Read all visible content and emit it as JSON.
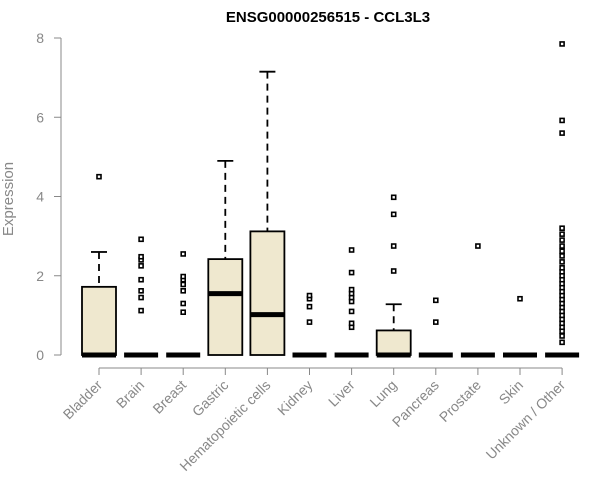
{
  "chart_data": {
    "type": "boxplot",
    "title": "ENSG00000256515 - CCL3L3",
    "ylabel": "Expression",
    "xlabel": "",
    "ylim": [
      0,
      8
    ],
    "yticks": [
      0,
      2,
      4,
      6,
      8
    ],
    "box_fill": "#efe8cf",
    "categories": [
      "Bladder",
      "Brain",
      "Breast",
      "Gastric",
      "Hematopoietic cells",
      "Kidney",
      "Liver",
      "Lung",
      "Pancreas",
      "Prostate",
      "Skin",
      "Unknown / Other"
    ],
    "boxes": [
      {
        "q1": 0,
        "median": 0,
        "q3": 1.72,
        "whisker_low": 0,
        "whisker_high": 2.6,
        "outliers": [
          4.5
        ]
      },
      {
        "q1": 0,
        "median": 0,
        "q3": 0,
        "whisker_low": 0,
        "whisker_high": 0,
        "outliers": [
          1.12,
          1.45,
          1.62,
          1.9,
          2.25,
          2.4,
          2.48,
          2.92
        ]
      },
      {
        "q1": 0,
        "median": 0,
        "q3": 0,
        "whisker_low": 0,
        "whisker_high": 0,
        "outliers": [
          1.08,
          1.3,
          1.62,
          1.78,
          1.9,
          1.98,
          2.55
        ]
      },
      {
        "q1": 0,
        "median": 1.55,
        "q3": 2.42,
        "whisker_low": 0,
        "whisker_high": 4.9,
        "outliers": []
      },
      {
        "q1": 0,
        "median": 1.02,
        "q3": 3.12,
        "whisker_low": 0,
        "whisker_high": 7.15,
        "outliers": []
      },
      {
        "q1": 0,
        "median": 0,
        "q3": 0,
        "whisker_low": 0,
        "whisker_high": 0,
        "outliers": [
          0.83,
          1.22,
          1.42,
          1.5
        ]
      },
      {
        "q1": 0,
        "median": 0,
        "q3": 0,
        "whisker_low": 0,
        "whisker_high": 0,
        "outliers": [
          0.7,
          0.8,
          1.1,
          1.35,
          1.45,
          1.55,
          1.65,
          2.08,
          2.65
        ]
      },
      {
        "q1": 0,
        "median": 0,
        "q3": 0.62,
        "whisker_low": 0,
        "whisker_high": 1.28,
        "outliers": [
          2.12,
          2.75,
          3.55,
          3.98
        ]
      },
      {
        "q1": 0,
        "median": 0,
        "q3": 0,
        "whisker_low": 0,
        "whisker_high": 0,
        "outliers": [
          0.83,
          1.38
        ]
      },
      {
        "q1": 0,
        "median": 0,
        "q3": 0,
        "whisker_low": 0,
        "whisker_high": 0,
        "outliers": [
          2.75
        ]
      },
      {
        "q1": 0,
        "median": 0,
        "q3": 0,
        "whisker_low": 0,
        "whisker_high": 0,
        "outliers": [
          1.42
        ]
      },
      {
        "q1": 0,
        "median": 0,
        "q3": 0,
        "whisker_low": 0,
        "whisker_high": 0,
        "outliers": [
          0.32,
          0.48,
          0.6,
          0.7,
          0.8,
          0.9,
          1.0,
          1.1,
          1.2,
          1.3,
          1.4,
          1.5,
          1.6,
          1.7,
          1.8,
          1.9,
          2.0,
          2.1,
          2.2,
          2.35,
          2.5,
          2.62,
          2.75,
          2.9,
          3.05,
          3.2,
          5.6,
          5.92,
          7.85
        ]
      }
    ]
  }
}
